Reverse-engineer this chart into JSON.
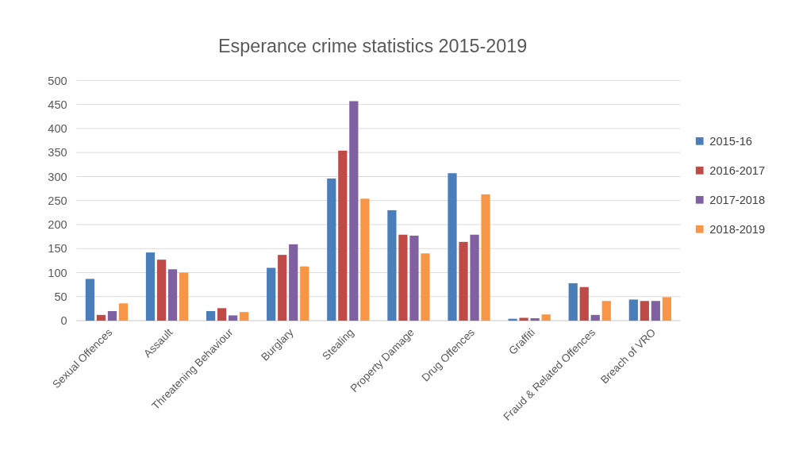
{
  "chart_data": {
    "type": "bar",
    "title": "Esperance crime statistics 2015-2019",
    "categories": [
      "Sexual Offences",
      "Assault",
      "Threatening Behaviour",
      "Burglary",
      "Stealing",
      "Property Damage",
      "Drug Offences",
      "Graffiti",
      "Fraud & Related Offences",
      "Breach of VRO"
    ],
    "series": [
      {
        "name": "2015-16",
        "color": "#4a7ebb",
        "values": [
          87,
          142,
          20,
          110,
          296,
          230,
          307,
          4,
          78,
          44
        ]
      },
      {
        "name": "2016-2017",
        "color": "#be4b48",
        "values": [
          12,
          127,
          26,
          137,
          354,
          179,
          164,
          6,
          70,
          41
        ]
      },
      {
        "name": "2017-2018",
        "color": "#7f60a0",
        "values": [
          20,
          107,
          11,
          159,
          457,
          177,
          179,
          5,
          12,
          41
        ]
      },
      {
        "name": "2018-2019",
        "color": "#f79646",
        "values": [
          36,
          100,
          18,
          113,
          254,
          140,
          263,
          13,
          41,
          49
        ]
      }
    ],
    "ylim": [
      0,
      500
    ],
    "yticks": [
      0,
      50,
      100,
      150,
      200,
      250,
      300,
      350,
      400,
      450,
      500
    ],
    "grid": "y",
    "legend": "right"
  }
}
